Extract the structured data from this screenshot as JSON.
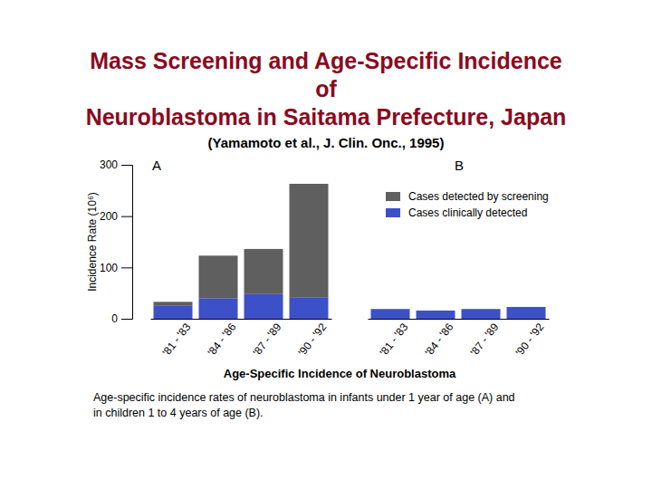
{
  "chart_data": {
    "type": "bar",
    "stacked": true,
    "title": [
      "Mass Screening and Age-Specific Incidence",
      "of",
      "Neuroblastoma in Saitama Prefecture, Japan"
    ],
    "subtitle": "(Yamamoto et al., J. Clin. Onc., 1995)",
    "panel_labels": [
      "A",
      "B"
    ],
    "x_label": "Age-Specific Incidence of Neuroblastoma",
    "y_label": "Incidence Rate (10⁶)",
    "caption": [
      "Age-specific incidence rates of neuroblastoma in infants under 1 year of age (A) and",
      "in children 1 to 4 years of age (B)."
    ],
    "categories": [
      "'81 - '83",
      "'84 - '86",
      "'87 - '89",
      "'90 - '92",
      "'81 - '83",
      "'84 - '86",
      "'87 - '89",
      "'90 - '92"
    ],
    "series": [
      {
        "name": "Cases clinically detected",
        "color": "#3c50c8",
        "values": [
          25,
          40,
          48,
          42,
          19,
          16,
          19,
          23
        ]
      },
      {
        "name": "Cases detected by screening",
        "color": "#5f5f5f",
        "values": [
          8,
          83,
          88,
          221,
          null,
          null,
          null,
          null
        ]
      }
    ],
    "ylim": [
      0,
      300
    ],
    "yticks": [
      0,
      100,
      200,
      300
    ],
    "grid": false,
    "legend": "upper right"
  }
}
